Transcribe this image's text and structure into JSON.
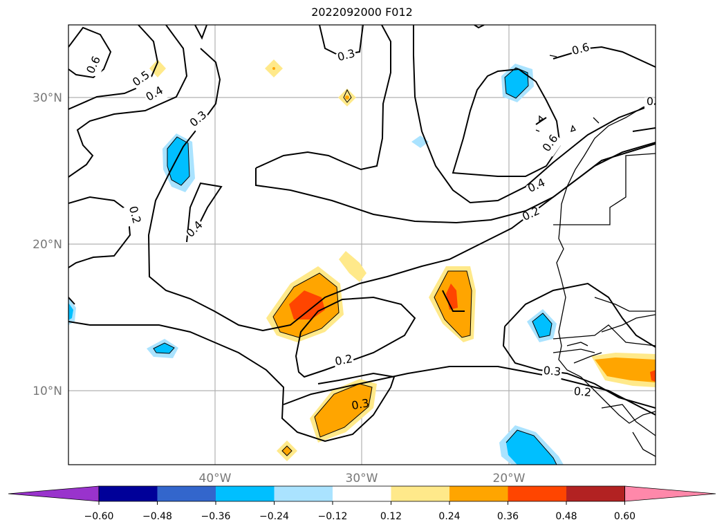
{
  "title": "2022092000 F012",
  "lat_labels": [
    "30°N",
    "20°N",
    "10°N"
  ],
  "lon_labels": [
    "40°W",
    "30°W",
    "20°W"
  ],
  "contour_labels": [
    "0.6",
    "0.5",
    "0.4",
    "0.3",
    "0.3",
    "0.2",
    "0.4",
    "0.6",
    "0.6",
    "0.4",
    "0.2",
    "0.2",
    "0.3",
    "0.3",
    "0.2",
    "0",
    "0.3"
  ],
  "colorbar": {
    "ticks": [
      "−0.60",
      "−0.48",
      "−0.36",
      "−0.24",
      "−0.12",
      "0.12",
      "0.24",
      "0.36",
      "0.48",
      "0.60"
    ],
    "colors": [
      "#9933cc",
      "#000099",
      "#3366cc",
      "#00bfff",
      "#aae3ff",
      "#ffffff",
      "#ffe98a",
      "#ffa500",
      "#ff4500",
      "#b22222",
      "#ff88aa"
    ]
  }
}
